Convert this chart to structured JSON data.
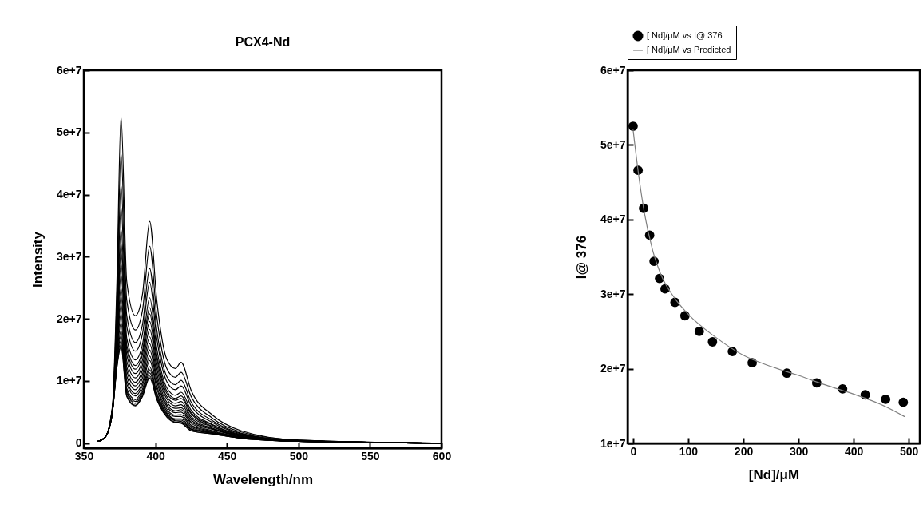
{
  "chart_data": [
    {
      "type": "line",
      "title": "PCX4-Nd",
      "xlabel": "Wavelength/nm",
      "ylabel": "Intensity",
      "x": [
        360,
        365,
        370,
        373,
        376,
        380,
        386,
        391,
        396,
        401,
        408,
        414,
        418,
        425,
        440,
        460,
        500,
        600
      ],
      "series": [
        {
          "color": "#000000",
          "values": [
            300000.0,
            1000000.0,
            6000000.0,
            25000000.0,
            52500000.0,
            26000000.0,
            20500000.0,
            24000000.0,
            35700000.0,
            23000000.0,
            13500000.0,
            12000000.0,
            13000000.0,
            8500000.0,
            4500000.0,
            2000000.0,
            500000.0,
            0
          ]
        },
        {
          "color": "#000000",
          "values": [
            300000.0,
            1000000.0,
            5800000.0,
            22900000.0,
            46600000.0,
            23000000.0,
            18200000.0,
            21400000.0,
            31700000.0,
            20400000.0,
            12000000.0,
            10600000.0,
            11400000.0,
            7500000.0,
            4000000.0,
            1800000.0,
            500000.0,
            0
          ]
        },
        {
          "color": "#000000",
          "values": [
            300000.0,
            1000000.0,
            5700000.0,
            21100000.0,
            41500000.0,
            20500000.0,
            16200000.0,
            19100000.0,
            28100000.0,
            18200000.0,
            10700000.0,
            9400000.0,
            10100000.0,
            6600000.0,
            3600000.0,
            1600000.0,
            400000.0,
            0
          ]
        },
        {
          "color": "#000000",
          "values": [
            300000.0,
            1000000.0,
            5600000.0,
            19900000.0,
            37900000.0,
            18800000.0,
            14800000.0,
            17600000.0,
            25900000.0,
            16800000.0,
            9900000.0,
            8600000.0,
            9200000.0,
            6000000.0,
            3300000.0,
            1500000.0,
            400000.0,
            0
          ]
        },
        {
          "color": "#000000",
          "values": [
            300000.0,
            1000000.0,
            5500000.0,
            18600000.0,
            34400000.0,
            16900000.0,
            13400000.0,
            15900000.0,
            23400000.0,
            15200000.0,
            8900000.0,
            7700000.0,
            8200000.0,
            5300000.0,
            3000000.0,
            1400000.0,
            400000.0,
            0
          ]
        },
        {
          "color": "#000000",
          "values": [
            300000.0,
            1000000.0,
            5500000.0,
            17900000.0,
            32100000.0,
            15800000.0,
            12500000.0,
            14900000.0,
            21800000.0,
            14200000.0,
            8400000.0,
            7200000.0,
            7600000.0,
            4900000.0,
            2900000.0,
            1300000.0,
            400000.0,
            0
          ]
        },
        {
          "color": "#000000",
          "values": [
            300000.0,
            1000000.0,
            5400000.0,
            17300000.0,
            30700000.0,
            15100000.0,
            11900000.0,
            14300000.0,
            20800000.0,
            13600000.0,
            8000000.0,
            6900000.0,
            7200000.0,
            4700000.0,
            2700000.0,
            1300000.0,
            400000.0,
            0
          ]
        },
        {
          "color": "#000000",
          "values": [
            300000.0,
            1000000.0,
            5400000.0,
            16700000.0,
            28900000.0,
            14200000.0,
            11200000.0,
            13400000.0,
            19600000.0,
            12800000.0,
            7500000.0,
            6400000.0,
            6700000.0,
            4300000.0,
            2600000.0,
            1200000.0,
            400000.0,
            0
          ]
        },
        {
          "color": "#000000",
          "values": [
            300000.0,
            1000000.0,
            5300000.0,
            16000000.0,
            27100000.0,
            13200000.0,
            10500000.0,
            12600000.0,
            18300000.0,
            12000000.0,
            7100000.0,
            6000000.0,
            6200000.0,
            4000000.0,
            2400000.0,
            1200000.0,
            400000.0,
            0
          ]
        },
        {
          "color": "#000000",
          "values": [
            300000.0,
            1000000.0,
            5300000.0,
            15400000.0,
            25000000.0,
            12300000.0,
            9800000.0,
            11800000.0,
            17100000.0,
            11200000.0,
            6600000.0,
            5600000.0,
            5700000.0,
            3700000.0,
            2300000.0,
            1100000.0,
            400000.0,
            0
          ]
        },
        {
          "color": "#000000",
          "values": [
            300000.0,
            1000000.0,
            5200000.0,
            14900000.0,
            23600000.0,
            11600000.0,
            9200000.0,
            11100000.0,
            16000000.0,
            10500000.0,
            6200000.0,
            5200000.0,
            5400000.0,
            3400000.0,
            2200000.0,
            1100000.0,
            300000.0,
            0
          ]
        },
        {
          "color": "#000000",
          "values": [
            300000.0,
            1000000.0,
            5200000.0,
            14300000.0,
            22300000.0,
            10800000.0,
            8600000.0,
            10500000.0,
            15000000.0,
            9900000.0,
            5900000.0,
            4900000.0,
            5000000.0,
            3200000.0,
            2000000.0,
            1000000.0,
            300000.0,
            0
          ]
        },
        {
          "color": "#000000",
          "values": [
            300000.0,
            1000000.0,
            5100000.0,
            13800000.0,
            20800000.0,
            10100000.0,
            8000000.0,
            9800000.0,
            14000000.0,
            9200000.0,
            5500000.0,
            4500000.0,
            4600000.0,
            2900000.0,
            1900000.0,
            1000000.0,
            300000.0,
            0
          ]
        },
        {
          "color": "#000000",
          "values": [
            300000.0,
            1000000.0,
            5100000.0,
            13400000.0,
            19400000.0,
            9500000.0,
            7600000.0,
            9300000.0,
            13300000.0,
            8800000.0,
            5200000.0,
            4300000.0,
            4300000.0,
            2700000.0,
            1800000.0,
            900000.0,
            300000.0,
            0
          ]
        },
        {
          "color": "#000000",
          "values": [
            300000.0,
            1000000.0,
            5100000.0,
            12900000.0,
            18100000.0,
            8800000.0,
            7000000.0,
            8700000.0,
            12300000.0,
            8100000.0,
            4900000.0,
            3900000.0,
            3900000.0,
            2500000.0,
            1700000.0,
            900000.0,
            300000.0,
            0
          ]
        },
        {
          "color": "#000000",
          "values": [
            300000.0,
            1000000.0,
            5100000.0,
            12700000.0,
            17300000.0,
            8400000.0,
            6700000.0,
            8300000.0,
            11800000.0,
            7800000.0,
            4700000.0,
            3700000.0,
            3700000.0,
            2300000.0,
            1700000.0,
            900000.0,
            300000.0,
            0
          ]
        },
        {
          "color": "#000000",
          "values": [
            300000.0,
            1000000.0,
            5000000.0,
            12400000.0,
            16500000.0,
            8100000.0,
            6400000.0,
            8000000.0,
            11300000.0,
            7500000.0,
            4500000.0,
            3600000.0,
            3500000.0,
            2200000.0,
            1600000.0,
            800000.0,
            300000.0,
            0
          ]
        },
        {
          "color": "#000000",
          "values": [
            300000.0,
            1000000.0,
            5000000.0,
            12100000.0,
            15900000.0,
            7700000.0,
            6100000.0,
            7700000.0,
            10800000.0,
            7200000.0,
            4300000.0,
            3400000.0,
            3300000.0,
            2000000.0,
            1500000.0,
            800000.0,
            300000.0,
            0
          ]
        },
        {
          "color": "#000000",
          "values": [
            300000.0,
            1000000.0,
            5000000.0,
            12000000.0,
            15500000.0,
            7500000.0,
            6000000.0,
            7500000.0,
            10500000.0,
            7000000.0,
            4200000.0,
            3300000.0,
            3200000.0,
            2000000.0,
            1500000.0,
            800000.0,
            300000.0,
            0
          ]
        }
      ],
      "xlim": [
        350,
        600
      ],
      "xticks": [
        350,
        400,
        450,
        500,
        550,
        600
      ],
      "ylim": [
        -800000.0,
        60000000.0
      ],
      "yticks": [
        0,
        {
          "value": 10000000.0,
          "label": "1e+7"
        },
        {
          "value": 20000000.0,
          "label": "2e+7"
        },
        {
          "value": 30000000.0,
          "label": "3e+7"
        },
        {
          "value": 40000000.0,
          "label": "4e+7"
        },
        {
          "value": 50000000.0,
          "label": "5e+7"
        },
        {
          "value": 60000000.0,
          "label": "6e+7"
        }
      ],
      "grid": false,
      "legend": false
    },
    {
      "type": "scatter",
      "xlabel": "[Nd]/μM",
      "ylabel": "I@ 376",
      "series": [
        {
          "name": "[ Nd]/μM vs I@ 376",
          "color": "#000000",
          "type": "scatter",
          "x": [
            0,
            9,
            19,
            30,
            38,
            48,
            58,
            76,
            94,
            120,
            144,
            180,
            216,
            279,
            333,
            380,
            421,
            458,
            490
          ],
          "values": [
            52500000.0,
            46600000.0,
            41500000.0,
            37900000.0,
            34400000.0,
            32100000.0,
            30700000.0,
            28900000.0,
            27100000.0,
            25000000.0,
            23600000.0,
            22300000.0,
            20800000.0,
            19400000.0,
            18100000.0,
            17300000.0,
            16500000.0,
            15900000.0,
            15500000.0
          ]
        },
        {
          "name": "[ Nd]/μM vs Predicted",
          "color": "#808080",
          "type": "line",
          "x": [
            0,
            10,
            20,
            35,
            50,
            75,
            100,
            150,
            200,
            250,
            300,
            350,
            400,
            450,
            492
          ],
          "values": [
            52000000.0,
            46000000.0,
            41100000.0,
            36000000.0,
            32700000.0,
            29500000.0,
            27300000.0,
            24200000.0,
            21800000.0,
            20300000.0,
            19100000.0,
            17800000.0,
            16600000.0,
            15200000.0,
            13600000.0
          ]
        }
      ],
      "xlim": [
        -10,
        520
      ],
      "xticks": [
        0,
        100,
        200,
        300,
        400,
        500
      ],
      "ylim": [
        10000000.0,
        60000000.0
      ],
      "yticks": [
        {
          "value": 10000000.0,
          "label": "1e+7"
        },
        {
          "value": 20000000.0,
          "label": "2e+7"
        },
        {
          "value": 30000000.0,
          "label": "3e+7"
        },
        {
          "value": 40000000.0,
          "label": "4e+7"
        },
        {
          "value": 50000000.0,
          "label": "5e+7"
        },
        {
          "value": 60000000.0,
          "label": "6e+7"
        }
      ],
      "grid": false,
      "legend": "top"
    }
  ]
}
